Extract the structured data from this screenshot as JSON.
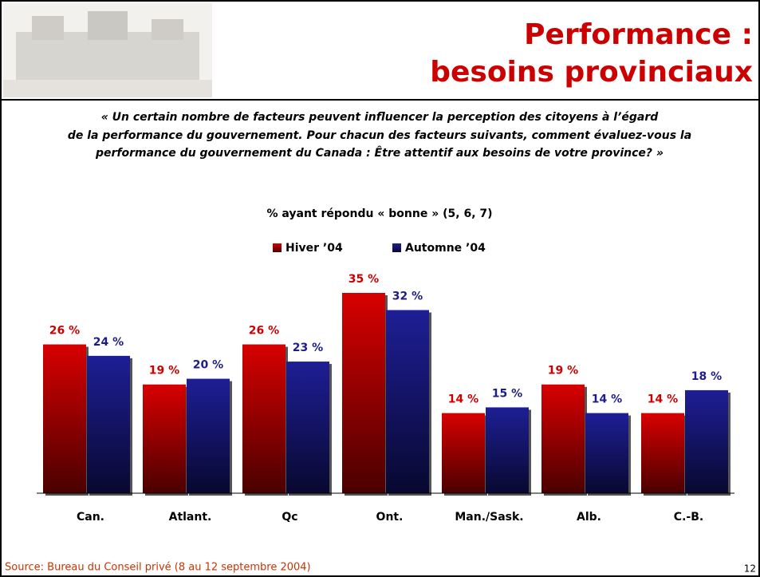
{
  "header": {
    "title_lines": [
      "Performance :",
      "besoins provinciaux"
    ]
  },
  "quote_lines": [
    "« Un certain nombre de facteurs peuvent influencer la perception des citoyens à l’égard",
    "de la performance du gouvernement. Pour chacun des facteurs suivants, comment évaluez-vous la",
    "performance du gouvernement du Canada : Être attentif aux besoins de votre province? »"
  ],
  "chart_data": {
    "type": "bar",
    "subtitle": "% ayant répondu « bonne » (5, 6, 7)",
    "categories": [
      "Can.",
      "Atlant.",
      "Qc",
      "Ont.",
      "Man./Sask.",
      "Alb.",
      "C.-B."
    ],
    "series": [
      {
        "name": "Hiver ’04",
        "color": "#cc0000",
        "values": [
          26,
          19,
          26,
          35,
          14,
          19,
          14
        ],
        "value_labels": [
          "26 %",
          "19 %",
          "26 %",
          "35 %",
          "14 %",
          "19 %",
          "14 %"
        ]
      },
      {
        "name": "Automne ’04",
        "color": "#1c1c8a",
        "values": [
          24,
          20,
          23,
          32,
          15,
          14,
          18
        ],
        "value_labels": [
          "24 %",
          "20 %",
          "23 %",
          "32 %",
          "15 %",
          "14 %",
          "18 %"
        ]
      }
    ],
    "grid": false
  },
  "footer": {
    "source": "Source: Bureau du Conseil privé (8 au 12 septembre 2004)",
    "page_number": "12"
  }
}
